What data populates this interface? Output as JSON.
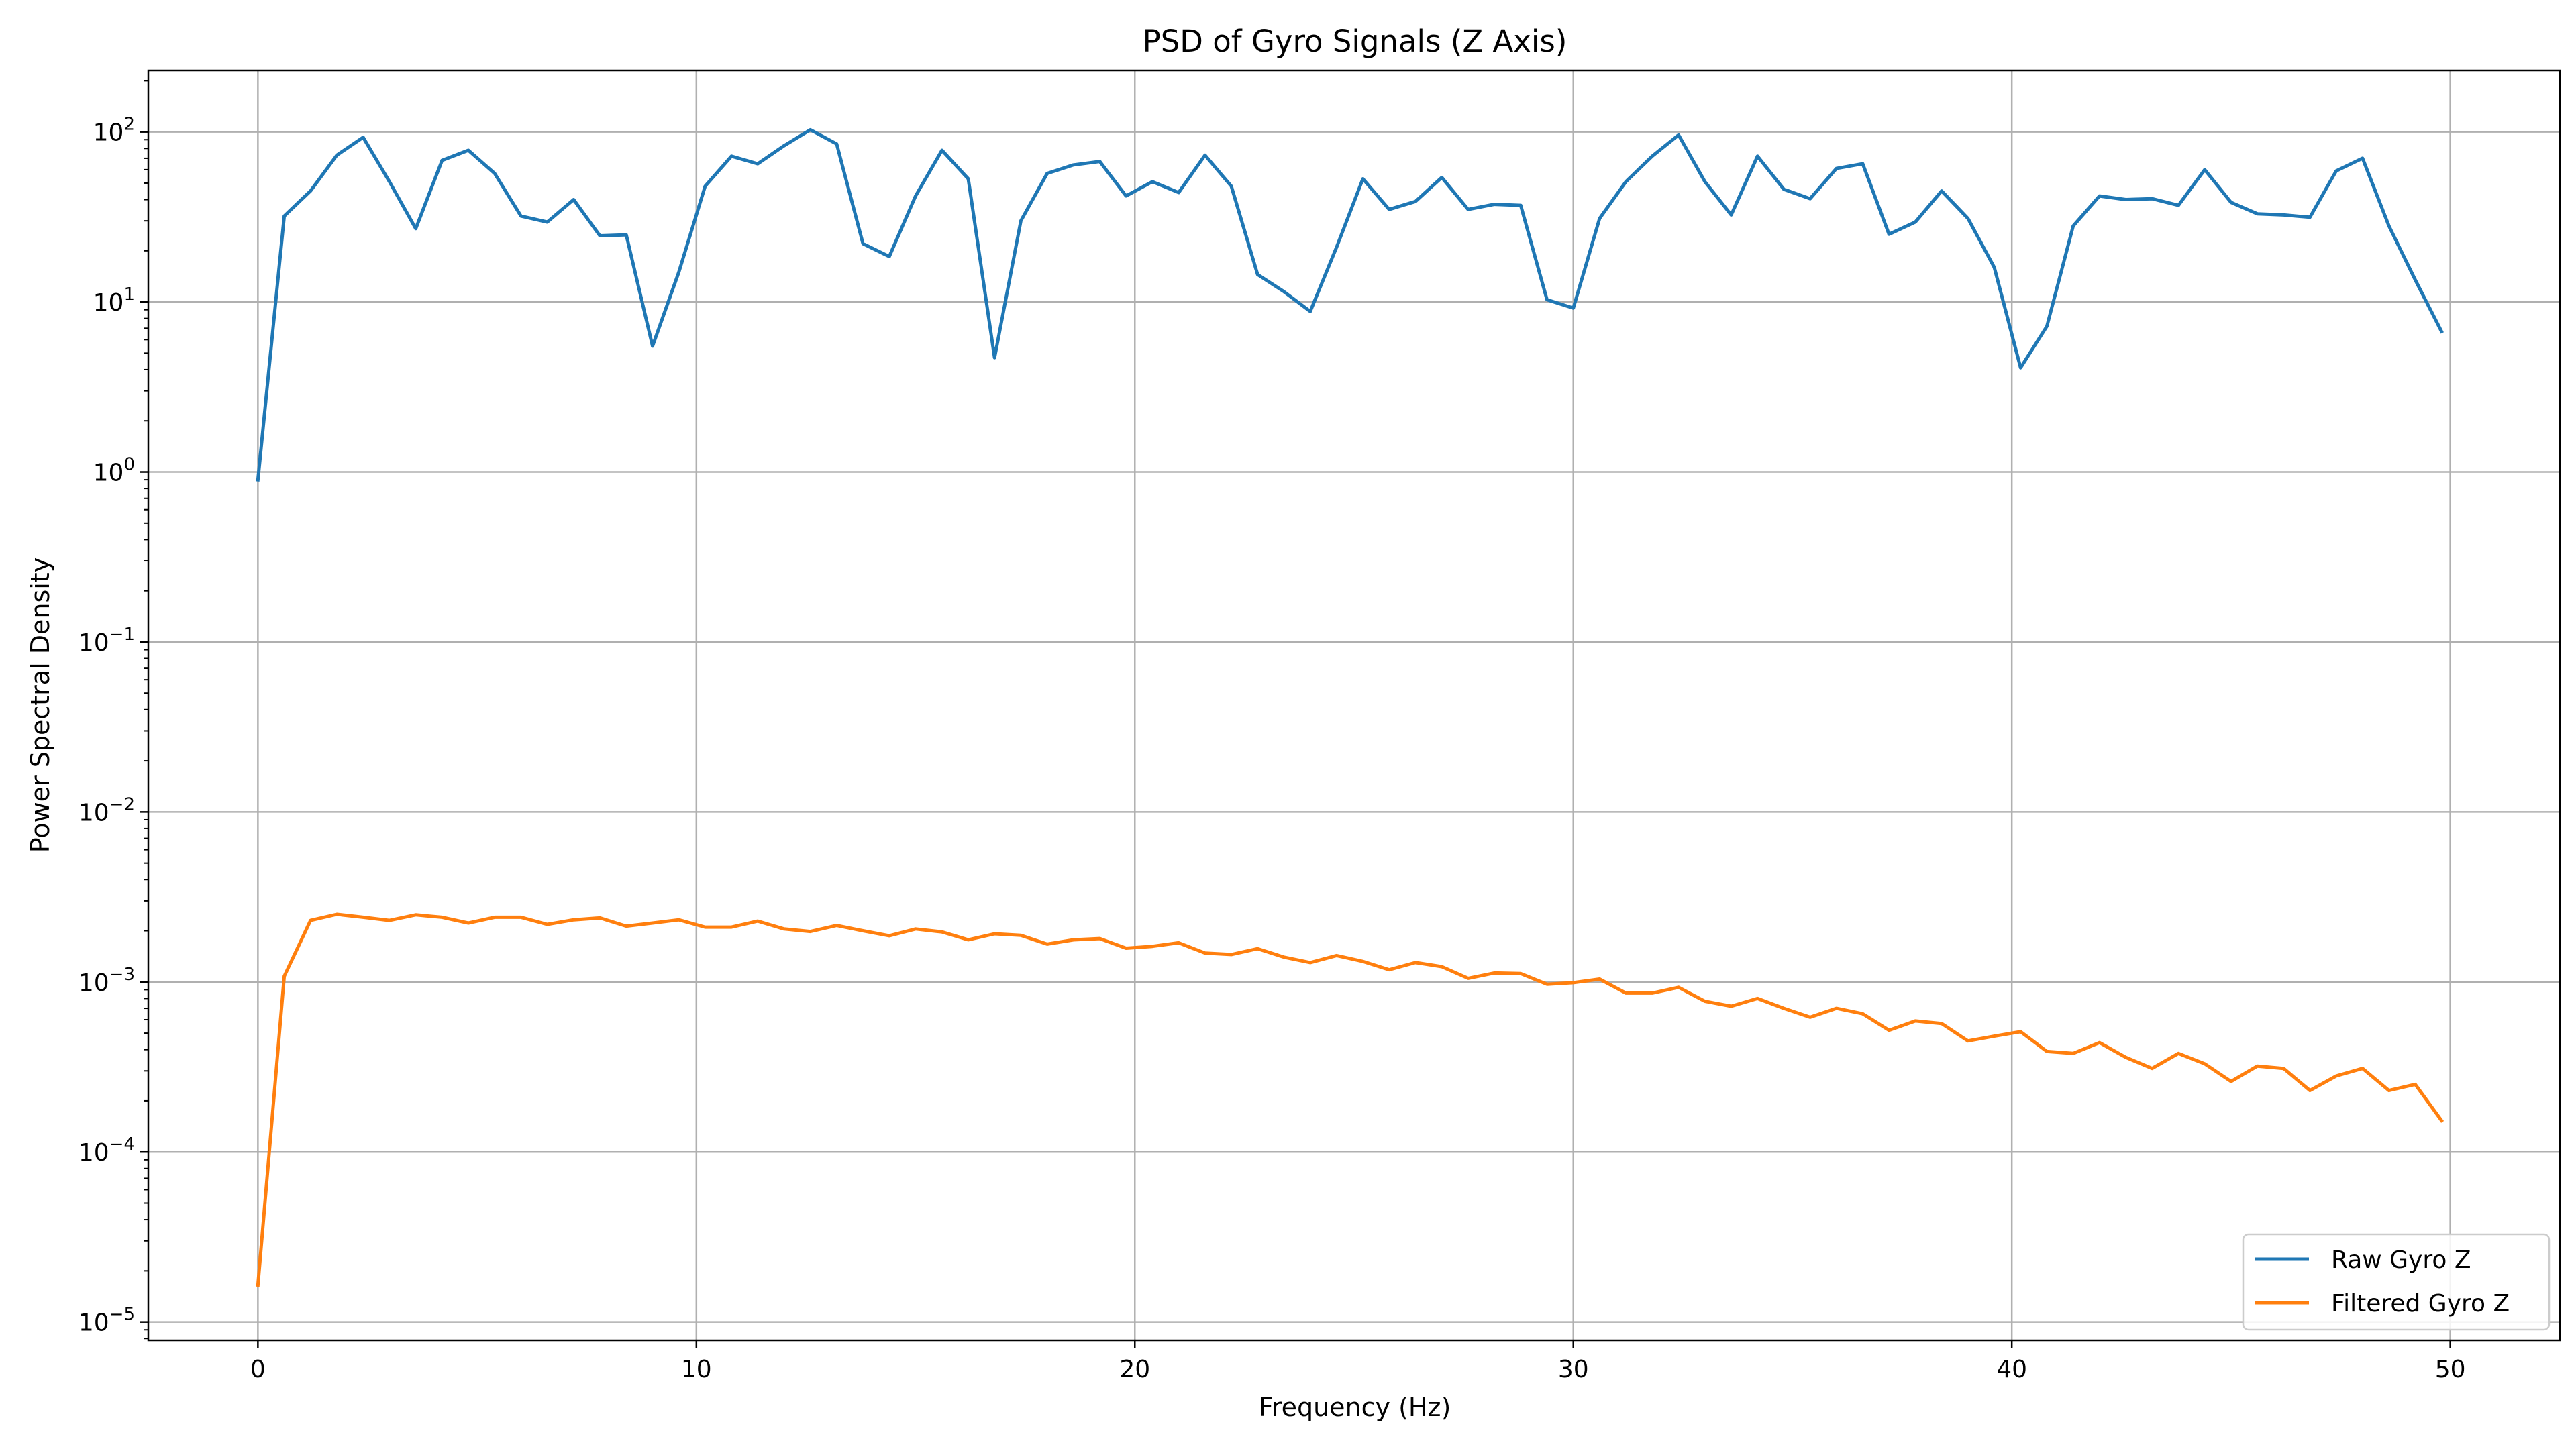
{
  "chart_data": {
    "type": "line",
    "title": "PSD of Gyro Signals (Z Axis)",
    "xlabel": "Frequency (Hz)",
    "ylabel": "Power Spectral Density",
    "xlim": [
      -2.5,
      52.5
    ],
    "ylim": [
      7.8e-06,
      230
    ],
    "yscale": "log",
    "grid": true,
    "legend_position": "lower right",
    "xticks": [
      0,
      10,
      20,
      30,
      40,
      50
    ],
    "xtick_labels": [
      "0",
      "10",
      "20",
      "30",
      "40",
      "50"
    ],
    "yticks": [
      {
        "value": 100,
        "base": "10",
        "exp": "2"
      },
      {
        "value": 10,
        "base": "10",
        "exp": "1"
      },
      {
        "value": 1,
        "base": "10",
        "exp": "0"
      },
      {
        "value": 0.1,
        "base": "10",
        "exp": "−1"
      },
      {
        "value": 0.01,
        "base": "10",
        "exp": "−2"
      },
      {
        "value": 0.001,
        "base": "10",
        "exp": "−3"
      },
      {
        "value": 0.0001,
        "base": "10",
        "exp": "−4"
      },
      {
        "value": 1e-05,
        "base": "10",
        "exp": "−5"
      }
    ],
    "series": [
      {
        "name": "Raw Gyro Z",
        "color": "#1f77b4",
        "x": [
          0,
          0.6,
          1.2,
          1.8,
          2.4,
          3.0,
          3.6,
          4.2,
          4.8,
          5.4,
          6.0,
          6.6,
          7.2,
          7.8,
          8.4,
          9.0,
          9.6,
          10.2,
          10.8,
          11.4,
          12.0,
          12.6,
          13.2,
          13.8,
          14.4,
          15.0,
          15.6,
          16.2,
          16.8,
          17.4,
          18.0,
          18.6,
          19.2,
          19.8,
          20.4,
          21.0,
          21.6,
          22.2,
          22.8,
          23.4,
          24.0,
          24.6,
          25.2,
          25.8,
          26.4,
          27.0,
          27.6,
          28.2,
          28.8,
          29.4,
          30.0,
          30.6,
          31.2,
          31.8,
          32.4,
          33.0,
          33.6,
          34.2,
          34.8,
          35.4,
          36.0,
          36.6,
          37.2,
          37.8,
          38.4,
          39.0,
          39.6,
          40.2,
          40.8,
          41.4,
          42.0,
          42.6,
          43.2,
          43.8,
          44.4,
          45.0,
          45.6,
          46.2,
          46.8,
          47.4,
          48.0,
          48.6,
          49.2,
          49.8
        ],
        "y": [
          0.9,
          32,
          45,
          73,
          93,
          51,
          27,
          68,
          78,
          57,
          32,
          29.5,
          40,
          24.5,
          24.8,
          5.5,
          15,
          48,
          72,
          65,
          83,
          103,
          85,
          22,
          18.5,
          42,
          78,
          53,
          4.7,
          30,
          57,
          64,
          67,
          42,
          51,
          44,
          73,
          48,
          14.5,
          11.5,
          8.8,
          21,
          53,
          35,
          39,
          54,
          35,
          37.5,
          37,
          10.3,
          9.2,
          31,
          51,
          72,
          96,
          51,
          32.5,
          72,
          46,
          40.5,
          61,
          65,
          25,
          29.5,
          45,
          31,
          16,
          4.1,
          7.2,
          28,
          42,
          40,
          40.5,
          37,
          60,
          38.5,
          33,
          32.5,
          31.5,
          59,
          70,
          28,
          13.5,
          6.7
        ]
      },
      {
        "name": "Filtered Gyro Z",
        "color": "#ff7f0e",
        "x": [
          0,
          0.6,
          1.2,
          1.8,
          2.4,
          3.0,
          3.6,
          4.2,
          4.8,
          5.4,
          6.0,
          6.6,
          7.2,
          7.8,
          8.4,
          9.0,
          9.6,
          10.2,
          10.8,
          11.4,
          12.0,
          12.6,
          13.2,
          13.8,
          14.4,
          15.0,
          15.6,
          16.2,
          16.8,
          17.4,
          18.0,
          18.6,
          19.2,
          19.8,
          20.4,
          21.0,
          21.6,
          22.2,
          22.8,
          23.4,
          24.0,
          24.6,
          25.2,
          25.8,
          26.4,
          27.0,
          27.6,
          28.2,
          28.8,
          29.4,
          30.0,
          30.6,
          31.2,
          31.8,
          32.4,
          33.0,
          33.6,
          34.2,
          34.8,
          35.4,
          36.0,
          36.6,
          37.2,
          37.8,
          38.4,
          39.0,
          39.6,
          40.2,
          40.8,
          41.4,
          42.0,
          42.6,
          43.2,
          43.8,
          44.4,
          45.0,
          45.6,
          46.2,
          46.8,
          47.4,
          48.0,
          48.6,
          49.2,
          49.8
        ],
        "y": [
          1.65e-05,
          0.00108,
          0.0023,
          0.0025,
          0.0024,
          0.0023,
          0.00248,
          0.0024,
          0.00222,
          0.0024,
          0.0024,
          0.00218,
          0.00232,
          0.00238,
          0.00213,
          0.00222,
          0.00232,
          0.0021,
          0.0021,
          0.00228,
          0.00205,
          0.00198,
          0.00215,
          0.002,
          0.00187,
          0.00205,
          0.00197,
          0.00177,
          0.00192,
          0.00188,
          0.00167,
          0.00177,
          0.0018,
          0.00158,
          0.00162,
          0.0017,
          0.00148,
          0.00145,
          0.00157,
          0.0014,
          0.0013,
          0.00143,
          0.00132,
          0.00118,
          0.0013,
          0.00123,
          0.00105,
          0.00113,
          0.00112,
          0.00097,
          0.00099,
          0.00104,
          0.00086,
          0.00086,
          0.00093,
          0.00077,
          0.00072,
          0.0008,
          0.0007,
          0.00062,
          0.0007,
          0.00065,
          0.00052,
          0.00059,
          0.00057,
          0.00045,
          0.00048,
          0.00051,
          0.00039,
          0.00038,
          0.00044,
          0.00036,
          0.00031,
          0.00038,
          0.00033,
          0.00026,
          0.00032,
          0.00031,
          0.00023,
          0.00028,
          0.00031,
          0.00023,
          0.00025,
          0.000153
        ]
      }
    ]
  }
}
